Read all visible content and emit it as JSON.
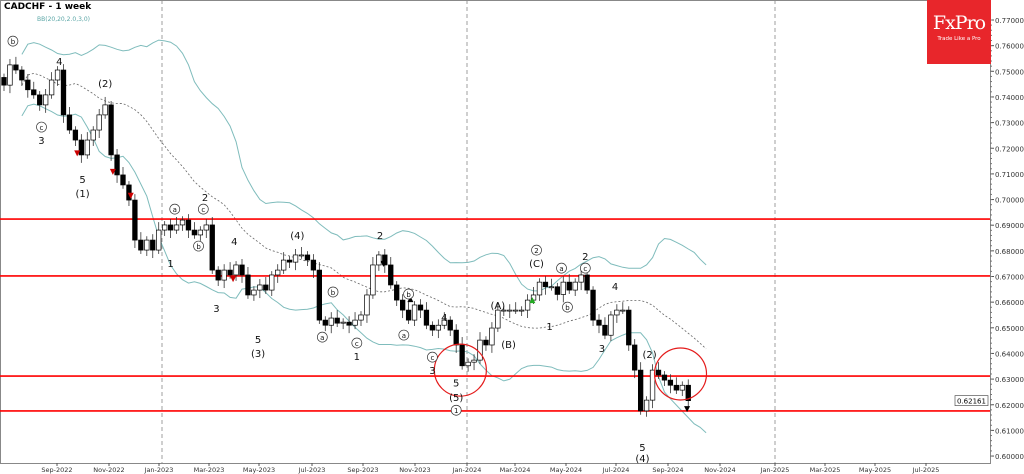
{
  "header": {
    "title": "CADCHF - 1 week",
    "indicator": "BB(20,20,2.0,3,0)"
  },
  "logo": {
    "brand": "FxPro",
    "tagline": "Trade Like a Pro",
    "color": "#e8262b"
  },
  "chart_data": {
    "type": "candlestick",
    "symbol": "CADCHF",
    "timeframe": "1 week",
    "ylim": [
      0.6,
      0.77
    ],
    "current_price": "0.62161",
    "y_ticks": [
      "0.77000",
      "0.76000",
      "0.75000",
      "0.74000",
      "0.73000",
      "0.72000",
      "0.71000",
      "0.70000",
      "0.69000",
      "0.68000",
      "0.67000",
      "0.66000",
      "0.65000",
      "0.64000",
      "0.63000",
      "0.62000",
      "0.61000",
      "0.60000"
    ],
    "x_ticks": [
      "Sep-2022",
      "Nov-2022",
      "Jan-2023",
      "Mar-2023",
      "May-2023",
      "Jul-2023",
      "Sep-2023",
      "Nov-2023",
      "Jan-2024",
      "Mar-2024",
      "May-2024",
      "Jul-2024",
      "Sep-2024",
      "Nov-2024",
      "Jan-2025",
      "Mar-2025",
      "May-2025",
      "Jul-2025"
    ],
    "year_separators": [
      "Jan-2023",
      "Jan-2024",
      "Jan-2025"
    ],
    "weekly_close": [
      0.7446,
      0.7525,
      0.7505,
      0.7466,
      0.7428,
      0.7408,
      0.7369,
      0.7408,
      0.7466,
      0.7505,
      0.733,
      0.7271,
      0.7232,
      0.7174,
      0.7232,
      0.7271,
      0.733,
      0.7369,
      0.7174,
      0.7096,
      0.7057,
      0.6998,
      0.6842,
      0.6803,
      0.6842,
      0.6803,
      0.6881,
      0.6901,
      0.6881,
      0.6901,
      0.692,
      0.6881,
      0.6862,
      0.6881,
      0.6901,
      0.6725,
      0.6686,
      0.6725,
      0.6706,
      0.6745,
      0.6706,
      0.6628,
      0.6647,
      0.6667,
      0.6647,
      0.6706,
      0.6725,
      0.6764,
      0.6756,
      0.6784,
      0.6784,
      0.6764,
      0.6725,
      0.653,
      0.651,
      0.6538,
      0.6518,
      0.6522,
      0.651,
      0.653,
      0.655,
      0.6628,
      0.6745,
      0.6784,
      0.6745,
      0.6667,
      0.6608,
      0.6569,
      0.653,
      0.6589,
      0.6569,
      0.651,
      0.6491,
      0.651,
      0.653,
      0.6491,
      0.6433,
      0.6352,
      0.6366,
      0.6374,
      0.6452,
      0.6433,
      0.6499,
      0.6569,
      0.6569,
      0.6569,
      0.6569,
      0.6569,
      0.6608,
      0.6628,
      0.6678,
      0.666,
      0.666,
      0.663,
      0.6678,
      0.6647,
      0.6678,
      0.6706,
      0.6647,
      0.653,
      0.651,
      0.6471,
      0.655,
      0.6569,
      0.6569,
      0.6433,
      0.6335,
      0.6176,
      0.6218,
      0.6335,
      0.6316,
      0.6296,
      0.6276,
      0.6257,
      0.6276,
      0.6216
    ],
    "bollinger": {
      "period": 20,
      "deviation": 2.0
    },
    "horizontal_levels": [
      0.6924,
      0.6702,
      0.6312,
      0.6176
    ],
    "level_color": "#ff0000",
    "band_color": "#7fbcbc",
    "highlight_circles": [
      {
        "week": 76.7,
        "price": 0.6335
      },
      {
        "week": 113.7,
        "price": 0.632
      }
    ],
    "wave_labels": [
      {
        "text": "b",
        "week": 1.5,
        "price": 0.7606,
        "circled": true
      },
      {
        "text": "c",
        "week": 6.3,
        "price": 0.7271,
        "circled": true
      },
      {
        "text": "3",
        "week": 6.3,
        "price": 0.722
      },
      {
        "text": "4",
        "week": 9.3,
        "price": 0.7528
      },
      {
        "text": "(2)",
        "week": 17,
        "price": 0.7443
      },
      {
        "text": "5",
        "week": 13.2,
        "price": 0.7068
      },
      {
        "text": "(1)",
        "week": 13.2,
        "price": 0.7014
      },
      {
        "text": "a",
        "week": 28.7,
        "price": 0.6951,
        "circled": true
      },
      {
        "text": "c",
        "week": 33.5,
        "price": 0.6951,
        "circled": true
      },
      {
        "text": "2",
        "week": 33.8,
        "price": 0.6998
      },
      {
        "text": "b",
        "week": 32.7,
        "price": 0.6807,
        "circled": true
      },
      {
        "text": "1",
        "week": 28,
        "price": 0.6741
      },
      {
        "text": "4",
        "week": 38.7,
        "price": 0.6826
      },
      {
        "text": "3",
        "week": 35.7,
        "price": 0.6565
      },
      {
        "text": "(4)",
        "week": 49.3,
        "price": 0.685
      },
      {
        "text": "5",
        "week": 42.7,
        "price": 0.6444
      },
      {
        "text": "(3)",
        "week": 42.7,
        "price": 0.639
      },
      {
        "text": "b",
        "week": 55.3,
        "price": 0.6628,
        "circled": true
      },
      {
        "text": "a",
        "week": 53.5,
        "price": 0.6452,
        "circled": true
      },
      {
        "text": "c",
        "week": 59.3,
        "price": 0.6429,
        "circled": true
      },
      {
        "text": "1",
        "week": 59.3,
        "price": 0.6378
      },
      {
        "text": "2",
        "week": 63.2,
        "price": 0.685
      },
      {
        "text": "b",
        "week": 68,
        "price": 0.662,
        "circled": true
      },
      {
        "text": "a",
        "week": 67.2,
        "price": 0.646,
        "circled": true
      },
      {
        "text": "c",
        "week": 72,
        "price": 0.6374,
        "circled": true
      },
      {
        "text": "4",
        "week": 74,
        "price": 0.653
      },
      {
        "text": "3",
        "week": 72,
        "price": 0.6323
      },
      {
        "text": "5",
        "week": 76,
        "price": 0.6276
      },
      {
        "text": "(5)",
        "week": 76,
        "price": 0.6218
      },
      {
        "text": "1",
        "week": 76,
        "price": 0.6167,
        "circled": true
      },
      {
        "text": "(A)",
        "week": 83,
        "price": 0.6577
      },
      {
        "text": "(B)",
        "week": 84.8,
        "price": 0.6425
      },
      {
        "text": "(C)",
        "week": 89.5,
        "price": 0.6741
      },
      {
        "text": "2",
        "week": 89.5,
        "price": 0.6791,
        "circled": true
      },
      {
        "text": "a",
        "week": 93.7,
        "price": 0.6721,
        "circled": true
      },
      {
        "text": "c",
        "week": 97.7,
        "price": 0.6721,
        "circled": true
      },
      {
        "text": "2",
        "week": 97.7,
        "price": 0.6768
      },
      {
        "text": "b",
        "week": 94.7,
        "price": 0.6569,
        "circled": true
      },
      {
        "text": "1",
        "week": 91.7,
        "price": 0.6495
      },
      {
        "text": "4",
        "week": 102.7,
        "price": 0.6651
      },
      {
        "text": "3",
        "week": 100.5,
        "price": 0.6409
      },
      {
        "text": "(2)",
        "week": 108.5,
        "price": 0.6386
      },
      {
        "text": "5",
        "week": 107.3,
        "price": 0.6023
      },
      {
        "text": "(4)",
        "week": 107.3,
        "price": 0.5968
      }
    ],
    "arrows": [
      {
        "dir": "down",
        "week": 63.8,
        "price": 0.6749,
        "color": "#000000"
      },
      {
        "dir": "up",
        "week": 68.3,
        "price": 0.6612,
        "color": "#000000"
      },
      {
        "dir": "down",
        "week": 114.8,
        "price": 0.6183,
        "color": "#000000"
      },
      {
        "dir": "up",
        "week": 88.8,
        "price": 0.6608,
        "color": "#22aa22"
      },
      {
        "dir": "down",
        "week": 12.3,
        "price": 0.718,
        "color": "#cc0000"
      },
      {
        "dir": "down",
        "week": 18.3,
        "price": 0.7108,
        "color": "#cc0000"
      },
      {
        "dir": "down",
        "week": 21.3,
        "price": 0.7015,
        "color": "#cc0000"
      },
      {
        "dir": "down",
        "week": 38.5,
        "price": 0.669,
        "color": "#cc0000"
      }
    ]
  }
}
